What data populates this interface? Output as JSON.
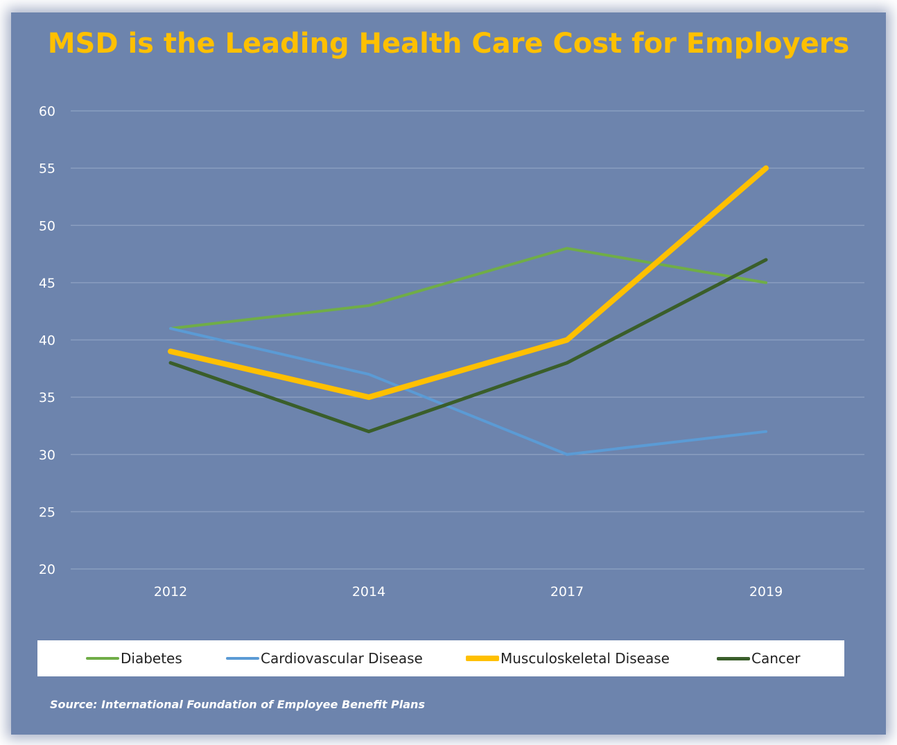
{
  "chart_data": {
    "type": "line",
    "title": "MSD is the Leading Health Care Cost for Employers",
    "categories": [
      "2012",
      "2014",
      "2017",
      "2019"
    ],
    "yticks": [
      "60",
      "55",
      "50",
      "45",
      "40",
      "35",
      "30",
      "25",
      "20"
    ],
    "ylim": [
      20,
      60
    ],
    "grid": true,
    "legend_position": "bottom",
    "series": [
      {
        "name": "Diabetes",
        "values": [
          41,
          43,
          48,
          45
        ],
        "color": "#70ad47"
      },
      {
        "name": "Cardiovascular Disease",
        "values": [
          41,
          37,
          30,
          32
        ],
        "color": "#5b9bd5"
      },
      {
        "name": "Musculoskeletal Disease",
        "values": [
          39,
          35,
          40,
          55
        ],
        "color": "#ffc000"
      },
      {
        "name": "Cancer",
        "values": [
          38,
          32,
          38,
          47
        ],
        "color": "#3a5e2a"
      }
    ],
    "source": "Source: International Foundation of Employee Benefit Plans"
  }
}
